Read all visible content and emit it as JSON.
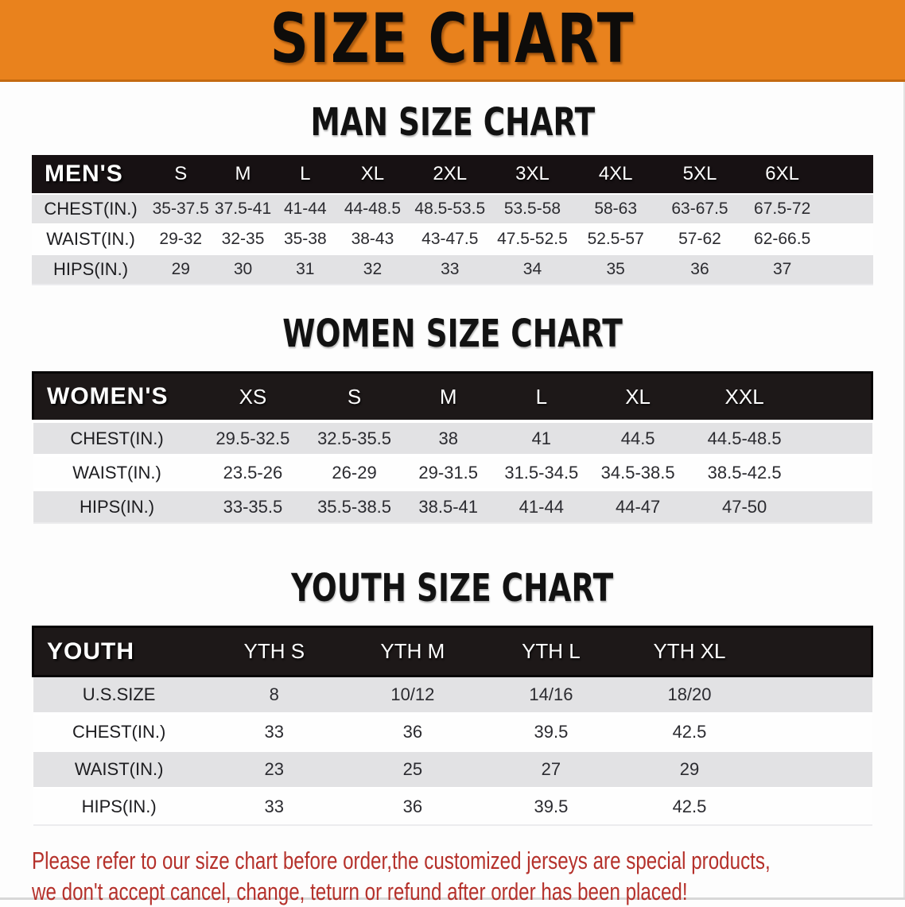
{
  "banner": {
    "title": "SIZE CHART"
  },
  "sections": [
    {
      "heading": "MAN SIZE CHART",
      "table": {
        "header_label": "MEN'S",
        "columns": [
          "S",
          "M",
          "L",
          "XL",
          "2XL",
          "3XL",
          "4XL",
          "5XL",
          "6XL"
        ],
        "rows": [
          {
            "label": "CHEST(IN.)",
            "values": [
              "35-37.5",
              "37.5-41",
              "41-44",
              "44-48.5",
              "48.5-53.5",
              "53.5-58",
              "58-63",
              "63-67.5",
              "67.5-72"
            ]
          },
          {
            "label": "WAIST(IN.)",
            "values": [
              "29-32",
              "32-35",
              "35-38",
              "38-43",
              "43-47.5",
              "47.5-52.5",
              "52.5-57",
              "57-62",
              "62-66.5"
            ]
          },
          {
            "label": "HIPS(IN.)",
            "values": [
              "29",
              "30",
              "31",
              "32",
              "33",
              "34",
              "35",
              "36",
              "37"
            ]
          }
        ]
      }
    },
    {
      "heading": "WOMEN SIZE CHART",
      "table": {
        "header_label": "WOMEN'S",
        "columns": [
          "XS",
          "S",
          "M",
          "L",
          "XL",
          "XXL"
        ],
        "rows": [
          {
            "label": "CHEST(IN.)",
            "values": [
              "29.5-32.5",
              "32.5-35.5",
              "38",
              "41",
              "44.5",
              "44.5-48.5"
            ]
          },
          {
            "label": "WAIST(IN.)",
            "values": [
              "23.5-26",
              "26-29",
              "29-31.5",
              "31.5-34.5",
              "34.5-38.5",
              "38.5-42.5"
            ]
          },
          {
            "label": "HIPS(IN.)",
            "values": [
              "33-35.5",
              "35.5-38.5",
              "38.5-41",
              "41-44",
              "44-47",
              "47-50"
            ]
          }
        ]
      }
    },
    {
      "heading": "YOUTH SIZE CHART",
      "table": {
        "header_label": "YOUTH",
        "columns": [
          "YTH S",
          "YTH M",
          "YTH L",
          "YTH XL"
        ],
        "rows": [
          {
            "label": "U.S.SIZE",
            "values": [
              "8",
              "10/12",
              "14/16",
              "18/20"
            ]
          },
          {
            "label": "CHEST(IN.)",
            "values": [
              "33",
              "36",
              "39.5",
              "42.5"
            ]
          },
          {
            "label": "WAIST(IN.)",
            "values": [
              "23",
              "25",
              "27",
              "29"
            ]
          },
          {
            "label": "HIPS(IN.)",
            "values": [
              "33",
              "36",
              "39.5",
              "42.5"
            ]
          }
        ]
      }
    }
  ],
  "note": {
    "line1": "Please refer to our size chart before order,the customized jerseys are special products,",
    "line2": "we don't accept cancel, change, teturn or refund after order has been placed!"
  },
  "colors": {
    "banner_bg": "#E9821D",
    "header_bar_black": "#171113",
    "stripe_gray": "#E2E2E4",
    "note_red": "#B5312B"
  }
}
